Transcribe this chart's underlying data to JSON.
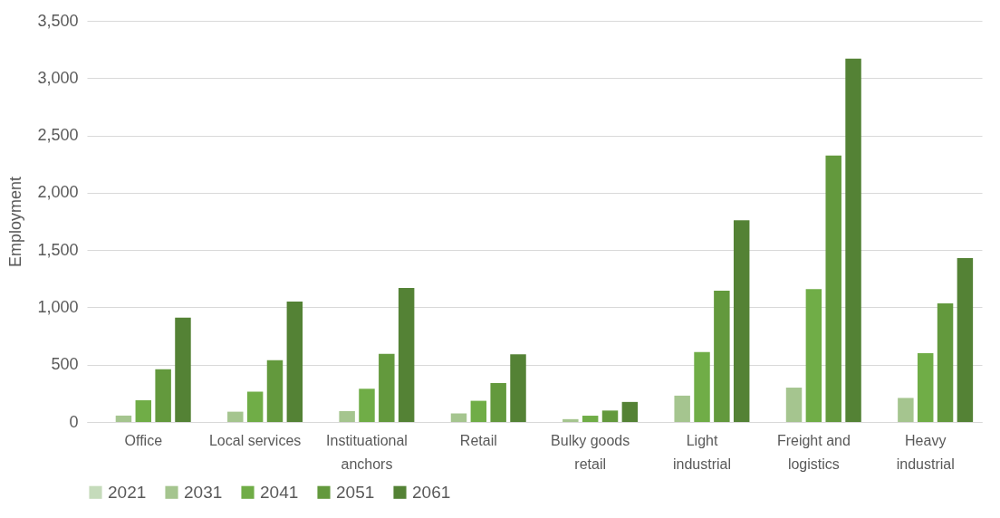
{
  "chart_data": {
    "type": "bar",
    "ylabel": "Employment",
    "categories": [
      "Office",
      "Local services",
      "Instituational anchors",
      "Retail",
      "Bulky goods retail",
      "Light industrial",
      "Freight and logistics",
      "Heavy industrial"
    ],
    "series": [
      {
        "name": "2021",
        "color": "#c5dbbb",
        "values": [
          0,
          0,
          0,
          0,
          0,
          0,
          0,
          0
        ]
      },
      {
        "name": "2031",
        "color": "#a5c58f",
        "values": [
          56,
          90,
          95,
          75,
          25,
          230,
          300,
          210
        ]
      },
      {
        "name": "2041",
        "color": "#70ad47",
        "values": [
          190,
          265,
          290,
          185,
          55,
          610,
          1160,
          600
        ]
      },
      {
        "name": "2051",
        "color": "#63993d",
        "values": [
          460,
          540,
          595,
          340,
          100,
          1145,
          2325,
          1035
        ]
      },
      {
        "name": "2061",
        "color": "#548235",
        "values": [
          910,
          1050,
          1170,
          590,
          175,
          1760,
          3170,
          1430
        ]
      }
    ],
    "ylim": [
      0,
      3500
    ],
    "yticks": [
      {
        "value": 0,
        "label": "0"
      },
      {
        "value": 500,
        "label": "500"
      },
      {
        "value": 1000,
        "label": "1,000"
      },
      {
        "value": 1500,
        "label": "1,500"
      },
      {
        "value": 2000,
        "label": "2,000"
      },
      {
        "value": 2500,
        "label": "2,500"
      },
      {
        "value": 3000,
        "label": "3,000"
      },
      {
        "value": 3500,
        "label": "3,500"
      }
    ],
    "grid": "y",
    "legend": "bottom"
  }
}
